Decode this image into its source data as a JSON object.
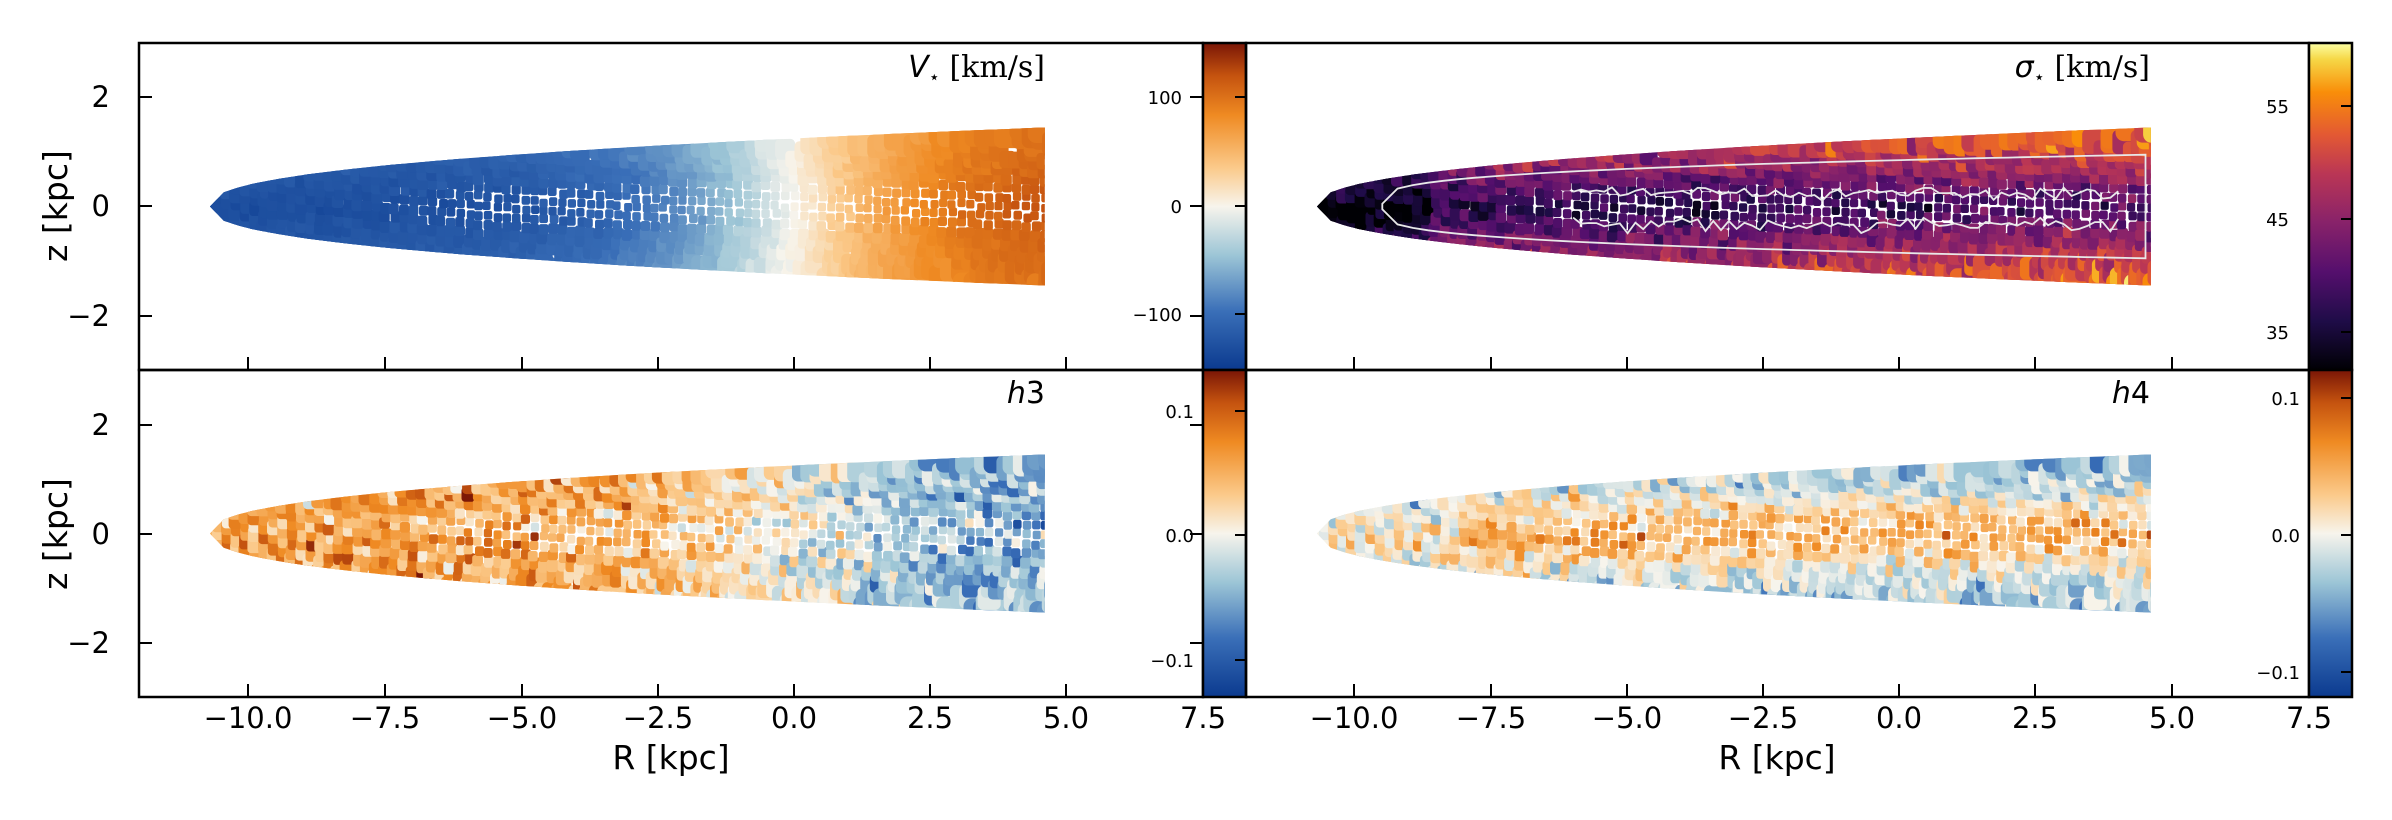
{
  "chart_data": [
    {
      "id": "velocity",
      "type": "heatmap",
      "title": "V⋆ [km/s]",
      "title_symbol": "V",
      "title_sub": "⋆",
      "title_unit": " [km/s]",
      "xlabel": "",
      "ylabel": "z [kpc]",
      "xlim": [
        -12,
        7.5
      ],
      "ylim": [
        -3,
        3
      ],
      "yticks": [
        2,
        0,
        -2
      ],
      "ytick_labels": [
        "2",
        "0",
        "−2"
      ],
      "colormap": "blue-white-orange-brown (diverging)",
      "colorbar": {
        "range": [
          -160,
          160
        ],
        "ticks": [
          100,
          0,
          -100
        ],
        "tick_labels": [
          "100",
          "0",
          "−100"
        ]
      },
      "disk_extent_R": [
        -10.7,
        4.6
      ],
      "disk_halfthickness_z": 1.45,
      "field_description": "rotation: negative R approaching (blue ≈ −120), positive R receding (brown ≈ +140), zero near R = 0"
    },
    {
      "id": "dispersion",
      "type": "heatmap",
      "title": "σ⋆ [km/s]",
      "title_symbol": "σ",
      "title_sub": "⋆",
      "title_unit": " [km/s]",
      "xlabel": "",
      "ylabel": "",
      "xlim": [
        -12,
        7.5
      ],
      "ylim": [
        -3,
        3
      ],
      "colormap": "inferno",
      "colorbar": {
        "range": [
          31,
          61
        ],
        "ticks": [
          55,
          45,
          35
        ],
        "tick_labels": [
          "55",
          "45",
          "35"
        ]
      },
      "disk_extent_R": [
        -10.7,
        4.6
      ],
      "disk_halfthickness_z": 1.45,
      "contours": "white isocontours outlining the low-dispersion midplane"
    },
    {
      "id": "h3",
      "type": "heatmap",
      "title": "h3",
      "title_symbol": "h",
      "title_sub": "",
      "title_unit": "3",
      "xlabel": "R [kpc]",
      "ylabel": "z [kpc]",
      "xlim": [
        -12,
        7.5
      ],
      "ylim": [
        -3,
        3
      ],
      "xticks": [
        -10,
        -7.5,
        -5,
        -2.5,
        0,
        2.5,
        5,
        7.5
      ],
      "xtick_labels": [
        "−10.0",
        "−7.5",
        "−5.0",
        "−2.5",
        "0.0",
        "2.5",
        "5.0",
        "7.5"
      ],
      "yticks": [
        2,
        0,
        -2
      ],
      "ytick_labels": [
        "2",
        "0",
        "−2"
      ],
      "colormap": "blue-white-orange-brown (diverging)",
      "colorbar": {
        "range": [
          -0.13,
          0.13
        ],
        "ticks": [
          0.1,
          0.0,
          -0.1
        ],
        "tick_labels": [
          "0.1",
          "0.0",
          "−0.1"
        ]
      },
      "disk_extent_R": [
        -10.7,
        4.6
      ],
      "disk_halfthickness_z": 1.45
    },
    {
      "id": "h4",
      "type": "heatmap",
      "title": "h4",
      "title_symbol": "h",
      "title_sub": "",
      "title_unit": "4",
      "xlabel": "R [kpc]",
      "ylabel": "",
      "xlim": [
        -12,
        7.5
      ],
      "ylim": [
        -3,
        3
      ],
      "xticks": [
        -10,
        -7.5,
        -5,
        -2.5,
        0,
        2.5,
        5,
        7.5
      ],
      "xtick_labels": [
        "−10.0",
        "−7.5",
        "−5.0",
        "−2.5",
        "0.0",
        "2.5",
        "5.0",
        "7.5"
      ],
      "colormap": "blue-white-orange-brown (diverging)",
      "colorbar": {
        "range": [
          -0.13,
          0.13
        ],
        "ticks": [
          0.1,
          0.0,
          -0.1
        ],
        "tick_labels": [
          "0.1",
          "0.0",
          "−0.1"
        ]
      },
      "disk_extent_R": [
        -10.7,
        4.6
      ],
      "disk_halfthickness_z": 1.45
    }
  ],
  "colors": {
    "axis": "#000000",
    "background": "#ffffff",
    "contour": "#e8e8e8"
  }
}
